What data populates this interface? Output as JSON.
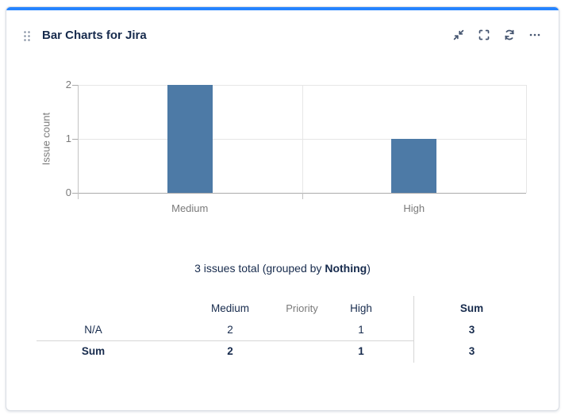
{
  "widget": {
    "title": "Bar Charts for Jira",
    "accent_color": "#2684ff",
    "icons": {
      "drag_handle": "drag-handle",
      "minimize": "shrink-arrows",
      "fullscreen": "corner-brackets",
      "refresh": "circular-arrows",
      "more": "ellipsis"
    }
  },
  "chart_data": {
    "type": "bar",
    "categories": [
      "Medium",
      "High"
    ],
    "values": [
      2,
      1
    ],
    "title": "",
    "xlabel": "Priority",
    "ylabel": "Issue count",
    "ylim": [
      0,
      2
    ],
    "yticks": [
      0,
      1,
      2
    ],
    "bar_color": "#4d7aa6",
    "grid": true,
    "legend": false
  },
  "summary": {
    "prefix": "3 issues total (grouped by ",
    "bold_term": "Nothing",
    "suffix": ")"
  },
  "table": {
    "columns": [
      "",
      "Medium",
      "High",
      "Sum"
    ],
    "rows": [
      {
        "label": "N/A",
        "values": [
          "2",
          "1",
          "3"
        ],
        "is_total": false
      },
      {
        "label": "Sum",
        "values": [
          "2",
          "1",
          "3"
        ],
        "is_total": true
      }
    ]
  }
}
